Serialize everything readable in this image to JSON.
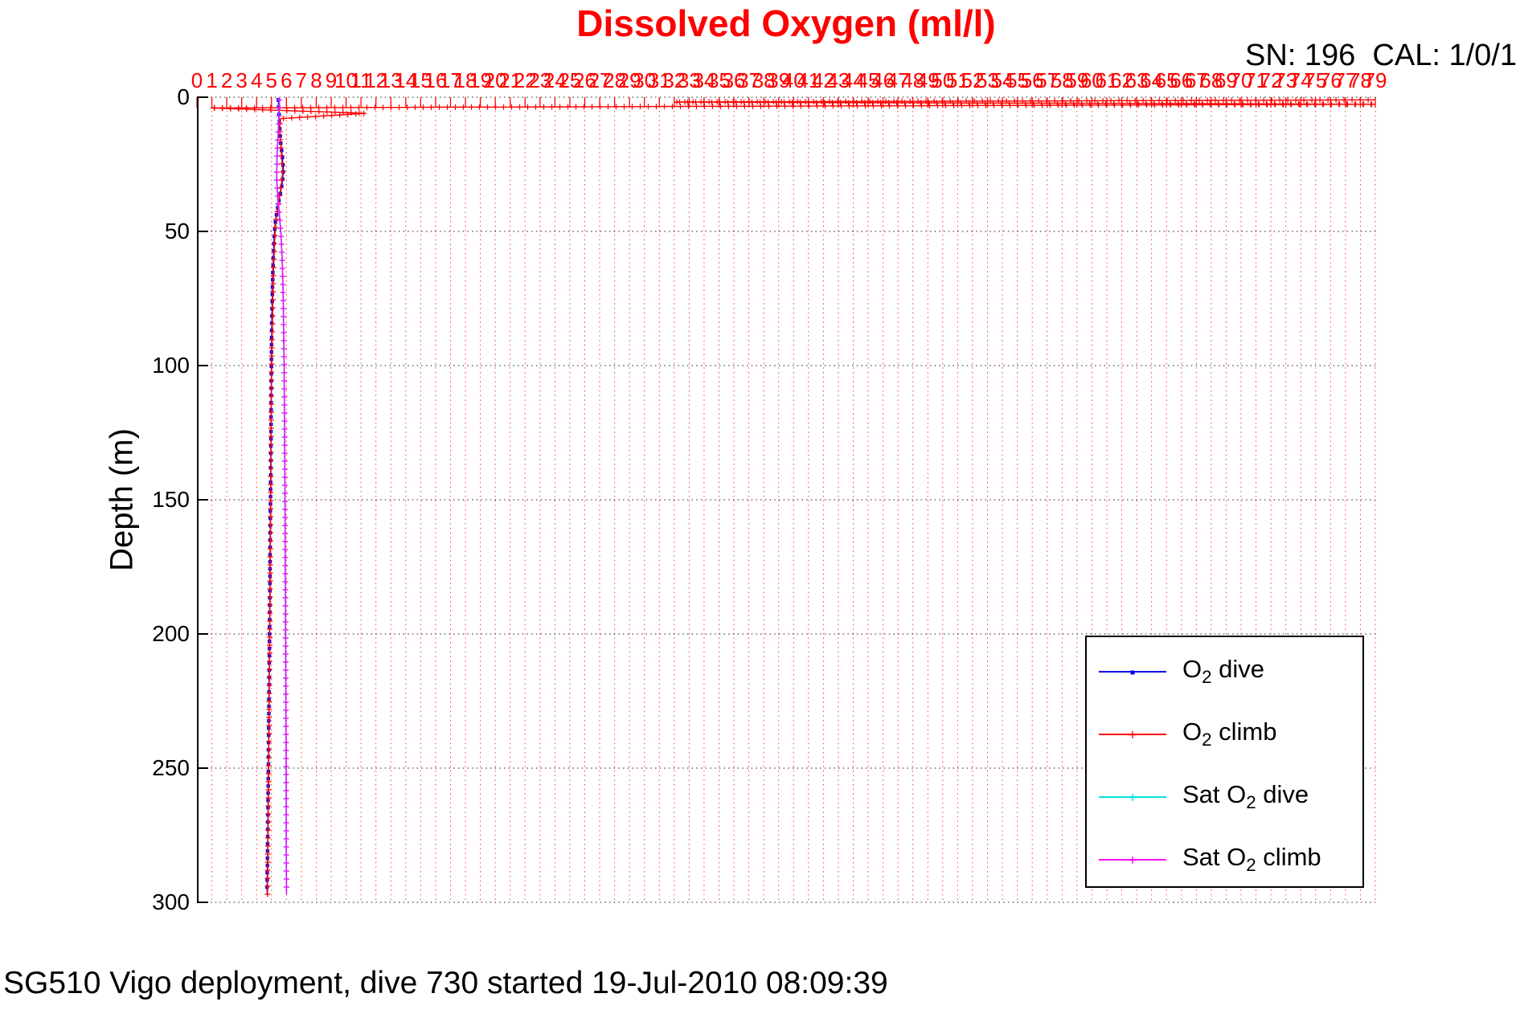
{
  "header": {
    "sn_cal": "SN: 196  CAL: 1/0/1"
  },
  "footer": {
    "caption": "SG510 Vigo deployment, dive 730 started 19-Jul-2010 08:09:39"
  },
  "chart_data": {
    "type": "line",
    "title": "Dissolved Oxygen (ml/l)",
    "xlabel": "",
    "ylabel": "Depth (m)",
    "x_axis": {
      "min": 0,
      "max": 79,
      "tick_step": 1,
      "location": "top",
      "color": "#ff0000",
      "grid": "red-dotted"
    },
    "y_axis": {
      "min": 0,
      "max": 300,
      "ticks": [
        0,
        50,
        100,
        150,
        200,
        250,
        300
      ],
      "reversed": true,
      "color": "#000000",
      "grid": "black-dotted"
    },
    "series": [
      {
        "name": "O2 dive",
        "color": "#0000ee",
        "marker": "square",
        "marker_step": 9,
        "points": [
          [
            5.45,
            1
          ],
          [
            5.5,
            6
          ],
          [
            5.55,
            12
          ],
          [
            5.62,
            17
          ],
          [
            5.72,
            22
          ],
          [
            5.8,
            27
          ],
          [
            5.72,
            32
          ],
          [
            5.55,
            37
          ],
          [
            5.38,
            42
          ],
          [
            5.25,
            47
          ],
          [
            5.18,
            52
          ],
          [
            5.12,
            60
          ],
          [
            5.07,
            70
          ],
          [
            5.03,
            82
          ],
          [
            5.0,
            95
          ],
          [
            4.98,
            110
          ],
          [
            4.96,
            128
          ],
          [
            4.94,
            145
          ],
          [
            4.91,
            165
          ],
          [
            4.89,
            185
          ],
          [
            4.86,
            205
          ],
          [
            4.83,
            225
          ],
          [
            4.8,
            245
          ],
          [
            4.77,
            263
          ],
          [
            4.74,
            280
          ],
          [
            4.71,
            292
          ],
          [
            4.7,
            297
          ]
        ]
      },
      {
        "name": "O2 climb",
        "color": "#ff0000",
        "marker": "plus",
        "marker_step": 10,
        "points": [
          [
            4.73,
            297
          ],
          [
            4.75,
            285
          ],
          [
            4.78,
            268
          ],
          [
            4.81,
            248
          ],
          [
            4.84,
            228
          ],
          [
            4.87,
            208
          ],
          [
            4.9,
            188
          ],
          [
            4.92,
            168
          ],
          [
            4.95,
            148
          ],
          [
            4.97,
            130
          ],
          [
            4.99,
            112
          ],
          [
            5.02,
            96
          ],
          [
            5.06,
            84
          ],
          [
            5.1,
            72
          ],
          [
            5.15,
            62
          ],
          [
            5.22,
            52
          ],
          [
            5.3,
            46
          ],
          [
            5.45,
            40
          ],
          [
            5.62,
            34
          ],
          [
            5.75,
            28
          ],
          [
            5.68,
            22
          ],
          [
            5.6,
            16
          ],
          [
            5.55,
            12
          ],
          [
            5.6,
            8
          ],
          [
            11.3,
            6
          ],
          [
            0.9,
            4
          ],
          [
            79,
            2.6
          ],
          [
            32,
            1.8
          ],
          [
            79,
            1.0
          ]
        ]
      },
      {
        "name": "Sat O2 dive",
        "color": "#00e0e0",
        "marker": "plus",
        "marker_step": 10,
        "points": [
          [
            5.52,
            1
          ],
          [
            5.48,
            8
          ],
          [
            5.42,
            15
          ],
          [
            5.36,
            22
          ],
          [
            5.33,
            30
          ],
          [
            5.4,
            37
          ],
          [
            5.52,
            44
          ],
          [
            5.62,
            51
          ],
          [
            5.7,
            60
          ],
          [
            5.76,
            72
          ],
          [
            5.8,
            86
          ],
          [
            5.83,
            100
          ],
          [
            5.86,
            120
          ],
          [
            5.88,
            140
          ],
          [
            5.9,
            165
          ],
          [
            5.92,
            190
          ],
          [
            5.94,
            215
          ],
          [
            5.96,
            240
          ],
          [
            5.97,
            262
          ],
          [
            5.98,
            282
          ],
          [
            5.99,
            297
          ]
        ]
      },
      {
        "name": "Sat O2 climb",
        "color": "#ff00ff",
        "marker": "plus",
        "marker_step": 10,
        "points": [
          [
            5.54,
            1
          ],
          [
            5.5,
            8
          ],
          [
            5.44,
            15
          ],
          [
            5.38,
            22
          ],
          [
            5.35,
            30
          ],
          [
            5.42,
            37
          ],
          [
            5.54,
            44
          ],
          [
            5.64,
            51
          ],
          [
            5.72,
            60
          ],
          [
            5.78,
            72
          ],
          [
            5.82,
            86
          ],
          [
            5.85,
            100
          ],
          [
            5.88,
            120
          ],
          [
            5.9,
            140
          ],
          [
            5.92,
            165
          ],
          [
            5.94,
            190
          ],
          [
            5.96,
            215
          ],
          [
            5.98,
            240
          ],
          [
            5.99,
            262
          ],
          [
            6.0,
            282
          ],
          [
            6.01,
            297
          ]
        ]
      }
    ],
    "legend": {
      "position": "inside-right",
      "entries": [
        {
          "label": "O2 dive",
          "pre": "O",
          "sub": "2",
          "post": " dive",
          "color": "#0000ee",
          "marker": "square"
        },
        {
          "label": "O2 climb",
          "pre": "O",
          "sub": "2",
          "post": " climb",
          "color": "#ff0000",
          "marker": "plus"
        },
        {
          "label": "Sat O2 dive",
          "pre": "Sat O",
          "sub": "2",
          "post": " dive",
          "color": "#00e0e0",
          "marker": "plus"
        },
        {
          "label": "Sat O2 climb",
          "pre": "Sat O",
          "sub": "2",
          "post": " climb",
          "color": "#ff00ff",
          "marker": "plus"
        }
      ]
    }
  }
}
